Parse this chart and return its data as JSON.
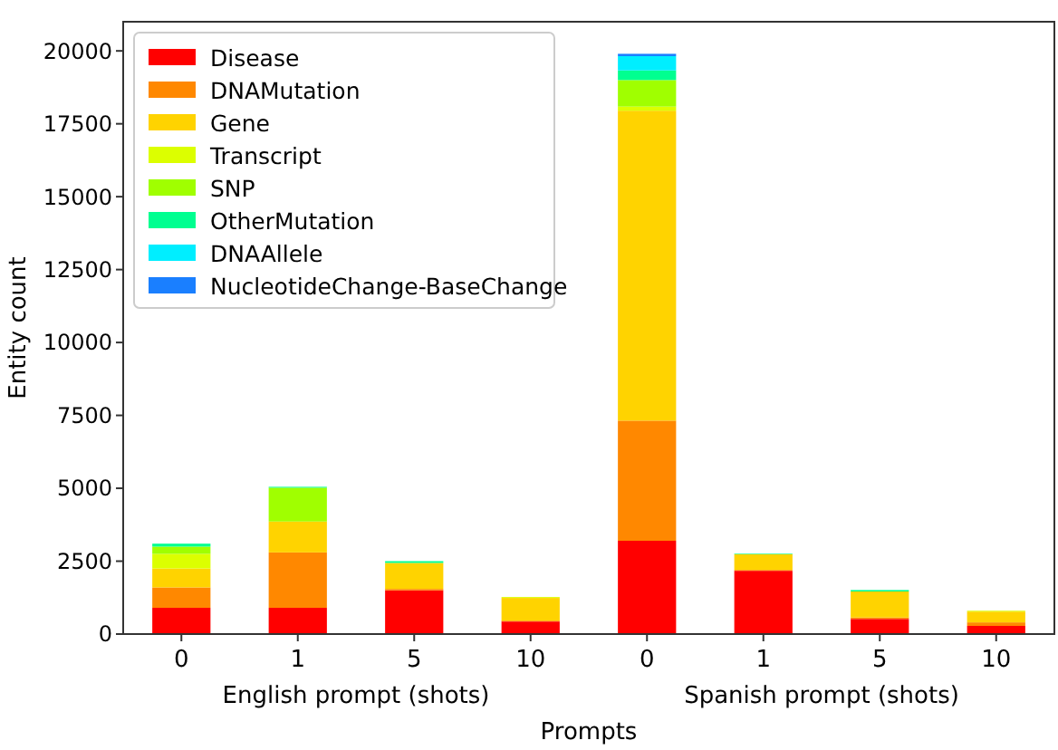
{
  "chart_data": {
    "type": "bar",
    "stacked": true,
    "xlabel": "Prompts",
    "ylabel": "Entity count",
    "categories": [
      "0",
      "1",
      "5",
      "10",
      "0",
      "1",
      "5",
      "10"
    ],
    "annotations": [
      "English prompt (shots)",
      "Spanish prompt (shots)"
    ],
    "ylim": [
      0,
      21000
    ],
    "yticks": [
      0,
      2500,
      5000,
      7500,
      10000,
      12500,
      15000,
      17500,
      20000
    ],
    "grid": false,
    "legend": "top left",
    "series": [
      {
        "name": "Disease",
        "color": "#ff0000",
        "values": [
          900,
          900,
          1500,
          430,
          3200,
          2170,
          520,
          280
        ]
      },
      {
        "name": "DNAMutation",
        "color": "#ff8800",
        "values": [
          700,
          1900,
          50,
          30,
          4120,
          30,
          50,
          120
        ]
      },
      {
        "name": "Gene",
        "color": "#ffd300",
        "values": [
          650,
          1060,
          890,
          780,
          10630,
          540,
          890,
          370
        ]
      },
      {
        "name": "Transcript",
        "color": "#dcff00",
        "values": [
          500,
          0,
          0,
          30,
          140,
          0,
          0,
          30
        ]
      },
      {
        "name": "SNP",
        "color": "#a0ff00",
        "values": [
          250,
          1160,
          0,
          0,
          910,
          0,
          0,
          0
        ]
      },
      {
        "name": "OtherMutation",
        "color": "#00ff90",
        "values": [
          100,
          30,
          60,
          0,
          330,
          20,
          50,
          0
        ]
      },
      {
        "name": "DNAAllele",
        "color": "#00eeff",
        "values": [
          null,
          0,
          0,
          0,
          490,
          0,
          0,
          0
        ]
      },
      {
        "name": "NucleotideChange-BaseChange",
        "color": "#1a7fff",
        "values": [
          0,
          0,
          0,
          0,
          80,
          0,
          0,
          0
        ]
      }
    ]
  }
}
